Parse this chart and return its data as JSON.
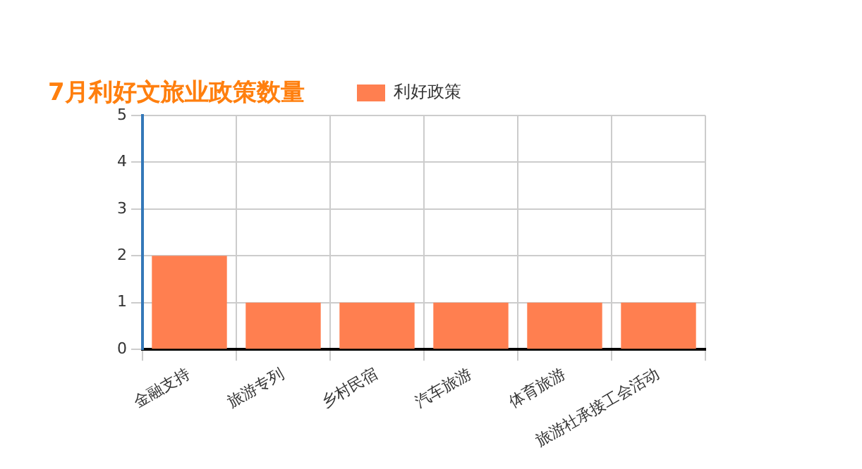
{
  "chart_data": {
    "type": "bar",
    "title": "7月利好文旅业政策数量",
    "categories": [
      "金融支持",
      "旅游专列",
      "乡村民宿",
      "汽车旅游",
      "体育旅游",
      "旅游社承接工会活动"
    ],
    "series": [
      {
        "name": "利好政策",
        "color": "#ff7f50",
        "values": [
          2,
          1,
          1,
          1,
          1,
          1
        ]
      }
    ],
    "ylim": [
      0,
      5
    ],
    "yticks": [
      0,
      1,
      2,
      3,
      4,
      5
    ],
    "grid": true,
    "legend": "top"
  }
}
